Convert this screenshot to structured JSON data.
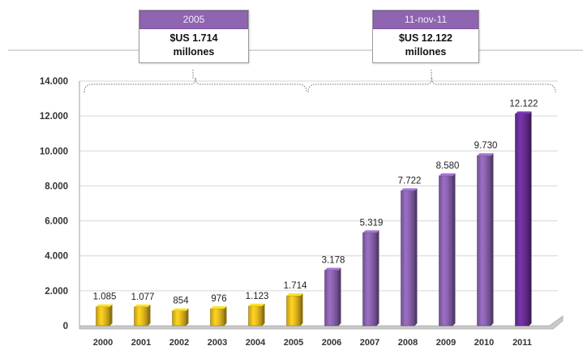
{
  "annotations": [
    {
      "header": "2005",
      "amount": "$US 1.714",
      "unit": "millones"
    },
    {
      "header": "11-nov-11",
      "amount": "$US 12.122",
      "unit": "millones"
    }
  ],
  "colors": {
    "gold": "#e9bd1e",
    "purple": "#8b63b1",
    "dark_purple": "#6c2f99",
    "callout_header": "#8f64b0"
  },
  "chart_data": {
    "type": "bar",
    "title": "",
    "xlabel": "",
    "ylabel": "",
    "categories": [
      "2000",
      "2001",
      "2002",
      "2003",
      "2004",
      "2005",
      "2006",
      "2007",
      "2008",
      "2009",
      "2010",
      "2011"
    ],
    "values": [
      1085,
      1077,
      854,
      976,
      1123,
      1714,
      3178,
      5319,
      7722,
      8580,
      9730,
      12122
    ],
    "value_labels": [
      "1.085",
      "1.077",
      "854",
      "976",
      "1.123",
      "1.714",
      "3.178",
      "5.319",
      "7.722",
      "8.580",
      "9.730",
      "12.122"
    ],
    "bar_colors": [
      "gold",
      "gold",
      "gold",
      "gold",
      "gold",
      "gold",
      "purple",
      "purple",
      "purple",
      "purple",
      "purple",
      "dark_purple"
    ],
    "ylim": [
      0,
      14000
    ],
    "yticks": [
      0,
      2000,
      4000,
      6000,
      8000,
      10000,
      12000,
      14000
    ],
    "ytick_labels": [
      "0",
      "2.000",
      "4.000",
      "6.000",
      "8.000",
      "10.000",
      "12.000",
      "14.000"
    ],
    "grid": true,
    "legend": "none"
  }
}
